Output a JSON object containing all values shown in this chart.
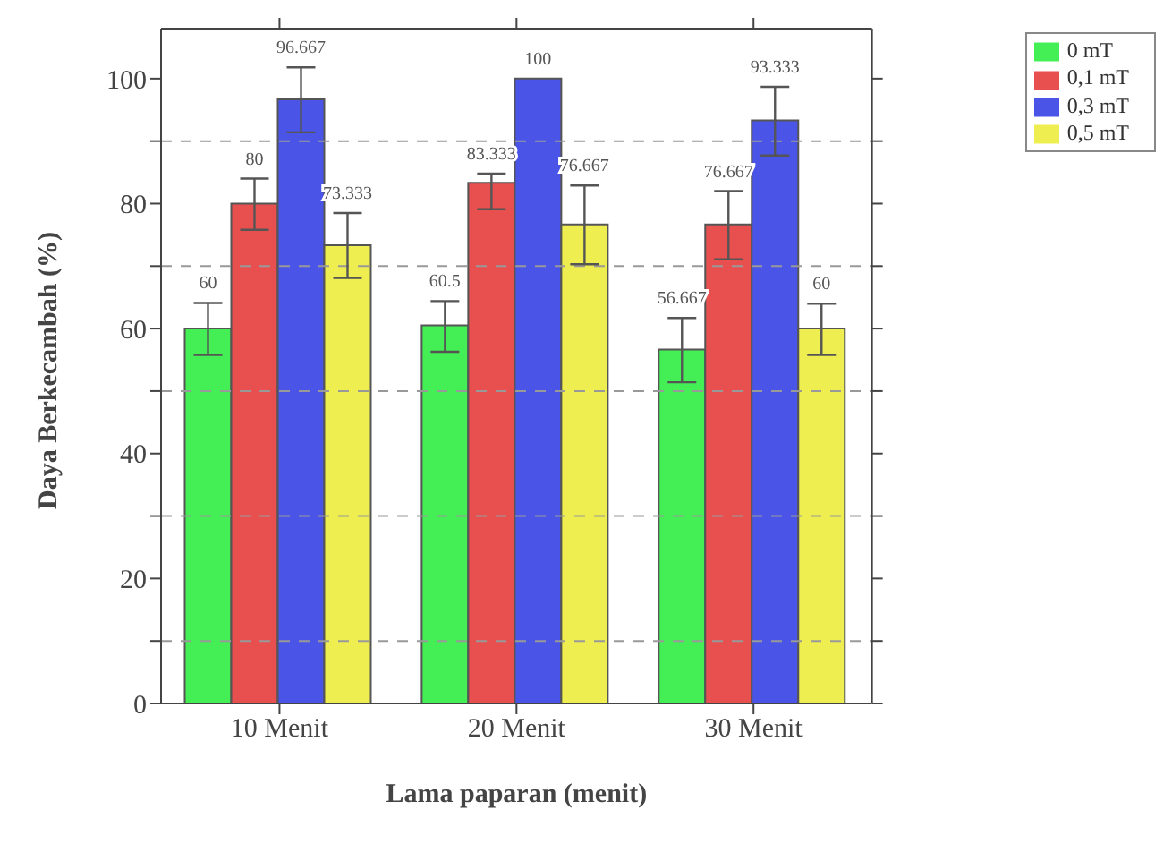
{
  "chart_data": {
    "type": "bar",
    "xlabel": "Lama paparan (menit)",
    "ylabel": "Daya Berkecambah (%)",
    "categories": [
      "10 Menit",
      "20 Menit",
      "30 Menit"
    ],
    "series": [
      {
        "name": "0 mT",
        "color": "#44ee55",
        "values": [
          60,
          60.5,
          56.667
        ],
        "errors": [
          [
            55.8,
            64.1
          ],
          [
            56.3,
            64.4
          ],
          [
            51.4,
            61.7
          ]
        ]
      },
      {
        "name": "0,1 mT",
        "color": "#e85050",
        "values": [
          80,
          83.333,
          76.667
        ],
        "errors": [
          [
            75.8,
            84
          ],
          [
            79.1,
            84.8
          ],
          [
            71.1,
            82
          ]
        ]
      },
      {
        "name": "0,3 mT",
        "color": "#4a55e8",
        "values": [
          96.667,
          100,
          93.333
        ],
        "errors": [
          [
            91.4,
            101.8
          ],
          null,
          [
            87.7,
            98.7
          ]
        ]
      },
      {
        "name": "0,5 mT",
        "color": "#eeee50",
        "values": [
          73.333,
          76.667,
          60
        ],
        "errors": [
          [
            68.1,
            78.5
          ],
          [
            70.3,
            82.9
          ],
          [
            55.8,
            64
          ]
        ]
      }
    ],
    "ylim": [
      0,
      108
    ],
    "yticks": [
      0,
      {
        "value": 10,
        "label": null
      },
      20,
      {
        "value": 30,
        "label": null
      },
      40,
      {
        "value": 50,
        "label": null
      },
      60,
      {
        "value": 70,
        "label": null
      },
      80,
      {
        "value": 90,
        "label": null
      },
      100
    ],
    "grid": "y",
    "legend": "top right",
    "data_labels": true
  }
}
